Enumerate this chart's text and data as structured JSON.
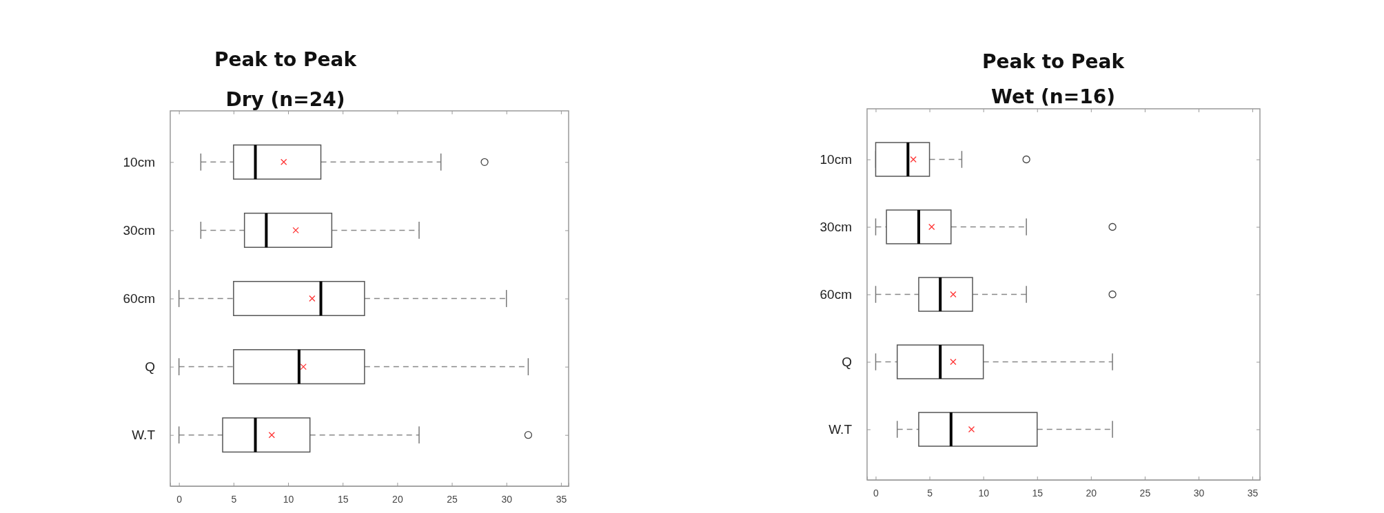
{
  "chart_data": [
    {
      "type": "box",
      "title": "Peak to Peak\nDry (n=24)",
      "orientation": "horizontal",
      "categories": [
        "10cm",
        "30cm",
        "60cm",
        "Q",
        "W.T"
      ],
      "boxes": [
        {
          "low": 2,
          "q1": 5,
          "median": 7,
          "q3": 13,
          "high": 24,
          "mean": 9.6,
          "outliers": [
            28
          ]
        },
        {
          "low": 2,
          "q1": 6,
          "median": 8,
          "q3": 14,
          "high": 22,
          "mean": 10.7
        },
        {
          "low": 0,
          "q1": 5,
          "median": 13,
          "q3": 17,
          "high": 30,
          "mean": 12.2
        },
        {
          "low": 0,
          "q1": 5,
          "median": 11,
          "q3": 17,
          "high": 32,
          "mean": 11.4
        },
        {
          "low": 0,
          "q1": 4,
          "median": 7,
          "q3": 12,
          "high": 22,
          "mean": 8.5,
          "outliers": [
            32
          ]
        }
      ],
      "xlim": [
        -0.8,
        35.7
      ],
      "xticks": [
        0,
        5,
        10,
        15,
        20,
        25,
        30,
        35
      ]
    },
    {
      "type": "box",
      "title": "Peak to Peak\nWet (n=16)",
      "orientation": "horizontal",
      "categories": [
        "10cm",
        "30cm",
        "60cm",
        "Q",
        "W.T"
      ],
      "boxes": [
        {
          "low": 0,
          "q1": 0,
          "median": 3,
          "q3": 5,
          "high": 8,
          "mean": 3.5,
          "outliers": [
            14
          ]
        },
        {
          "low": 0,
          "q1": 1,
          "median": 4,
          "q3": 7,
          "high": 14,
          "mean": 5.2,
          "outliers": [
            22
          ]
        },
        {
          "low": 0,
          "q1": 4,
          "median": 6,
          "q3": 9,
          "high": 14,
          "mean": 7.2,
          "outliers": [
            22
          ]
        },
        {
          "low": 0,
          "q1": 2,
          "median": 6,
          "q3": 10,
          "high": 22,
          "mean": 7.2
        },
        {
          "low": 2,
          "q1": 4,
          "median": 7,
          "q3": 15,
          "high": 22,
          "mean": 8.9
        }
      ],
      "xlim": [
        -0.8,
        35.7
      ],
      "xticks": [
        0,
        5,
        10,
        15,
        20,
        25,
        30,
        35
      ]
    }
  ]
}
